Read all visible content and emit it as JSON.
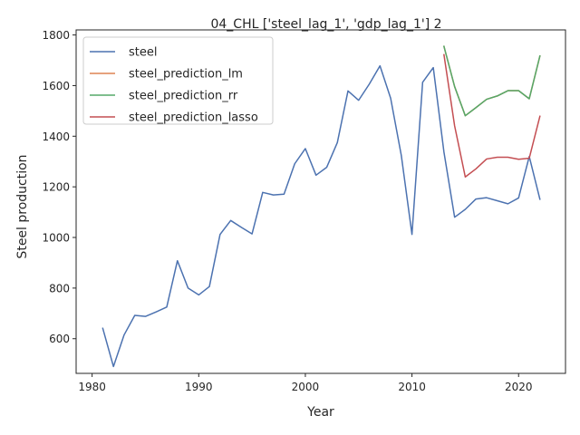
{
  "chart_data": {
    "type": "line",
    "title": "04_CHL ['steel_lag_1', 'gdp_lag_1'] 2",
    "xlabel": "Year",
    "ylabel": "Steel production",
    "xlim": [
      1978.5,
      2024.4
    ],
    "ylim": [
      463,
      1820
    ],
    "xticks": [
      1980,
      1990,
      2000,
      2010,
      2020
    ],
    "yticks": [
      600,
      800,
      1000,
      1200,
      1400,
      1600,
      1800
    ],
    "grid": false,
    "legend_position": "top-left",
    "series": [
      {
        "name": "steel",
        "color": "#4c72b0",
        "x": [
          1981,
          1982,
          1983,
          1984,
          1985,
          1986,
          1987,
          1988,
          1989,
          1990,
          1991,
          1992,
          1993,
          1994,
          1995,
          1996,
          1997,
          1998,
          1999,
          2000,
          2001,
          2002,
          2003,
          2004,
          2005,
          2006,
          2007,
          2008,
          2009,
          2010,
          2011,
          2012,
          2013,
          2014,
          2015,
          2016,
          2017,
          2018,
          2019,
          2020,
          2021,
          2022
        ],
        "y": [
          641,
          490,
          615,
          692,
          688,
          706,
          725,
          908,
          800,
          773,
          806,
          1012,
          1067,
          1040,
          1014,
          1178,
          1168,
          1171,
          1291,
          1351,
          1246,
          1277,
          1375,
          1579,
          1542,
          1606,
          1678,
          1550,
          1324,
          1012,
          1613,
          1671,
          1337,
          1080,
          1111,
          1152,
          1157,
          1145,
          1133,
          1156,
          1320,
          1151
        ]
      },
      {
        "name": "steel_prediction_lm",
        "color": "#dd8452",
        "x": [
          2013,
          2014,
          2015,
          2016,
          2017,
          2018,
          2019,
          2020,
          2021,
          2022
        ],
        "y": [
          1755,
          1596,
          1481,
          1513,
          1546,
          1559,
          1580,
          1580,
          1548,
          1717
        ]
      },
      {
        "name": "steel_prediction_rr",
        "color": "#55a868",
        "x": [
          2013,
          2014,
          2015,
          2016,
          2017,
          2018,
          2019,
          2020,
          2021,
          2022
        ],
        "y": [
          1755,
          1596,
          1481,
          1513,
          1546,
          1559,
          1580,
          1580,
          1548,
          1717
        ]
      },
      {
        "name": "steel_prediction_lasso",
        "color": "#c44e52",
        "x": [
          2013,
          2014,
          2015,
          2016,
          2017,
          2018,
          2019,
          2020,
          2021,
          2022
        ],
        "y": [
          1722,
          1441,
          1239,
          1271,
          1310,
          1317,
          1317,
          1309,
          1313,
          1479
        ]
      }
    ]
  }
}
